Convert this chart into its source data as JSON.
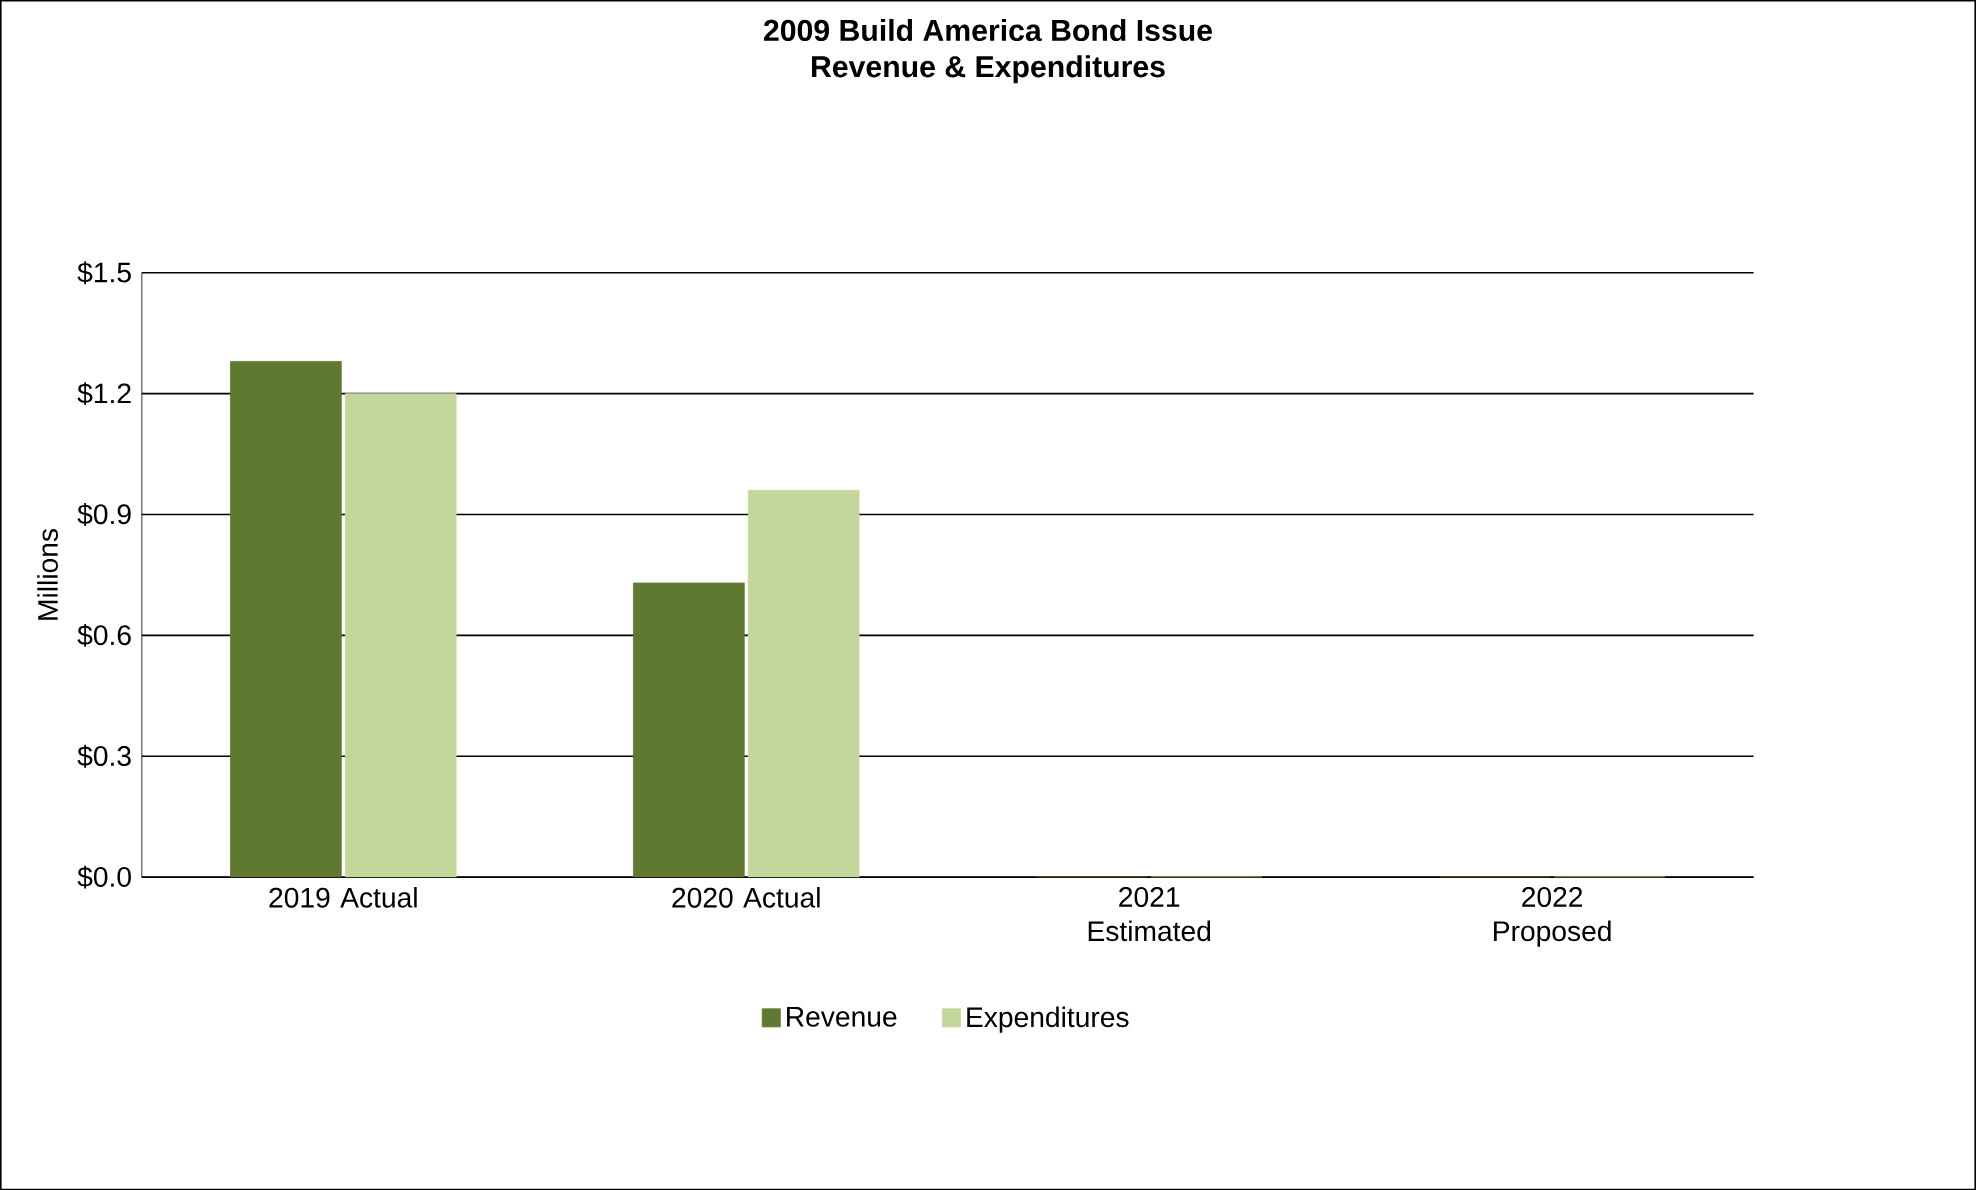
{
  "chart_data": {
    "type": "bar",
    "title": "2009 Build America Bond Issue",
    "subtitle": "Revenue & Expenditures",
    "ylabel": "Millions",
    "categories": [
      "2019 Actual",
      "2020 Actual",
      "2021 Estimated",
      "2022 Proposed"
    ],
    "series": [
      {
        "name": "Revenue",
        "color": "#5f7a30",
        "values": [
          1.28,
          0.73,
          0,
          0
        ]
      },
      {
        "name": "Expenditures",
        "color": "#c4d79b",
        "values": [
          1.2,
          0.96,
          0,
          0
        ]
      }
    ],
    "ylim": [
      0,
      1.5
    ],
    "yticks": [
      {
        "value": 0,
        "label": "$0.0"
      },
      {
        "value": 0.3,
        "label": "$0.3"
      },
      {
        "value": 0.6,
        "label": "$0.6"
      },
      {
        "value": 0.9,
        "label": "$0.9"
      },
      {
        "value": 1.2,
        "label": "$1.2"
      },
      {
        "value": 1.5,
        "label": "$1.5"
      }
    ],
    "grid": "y",
    "legend": "bottom"
  }
}
